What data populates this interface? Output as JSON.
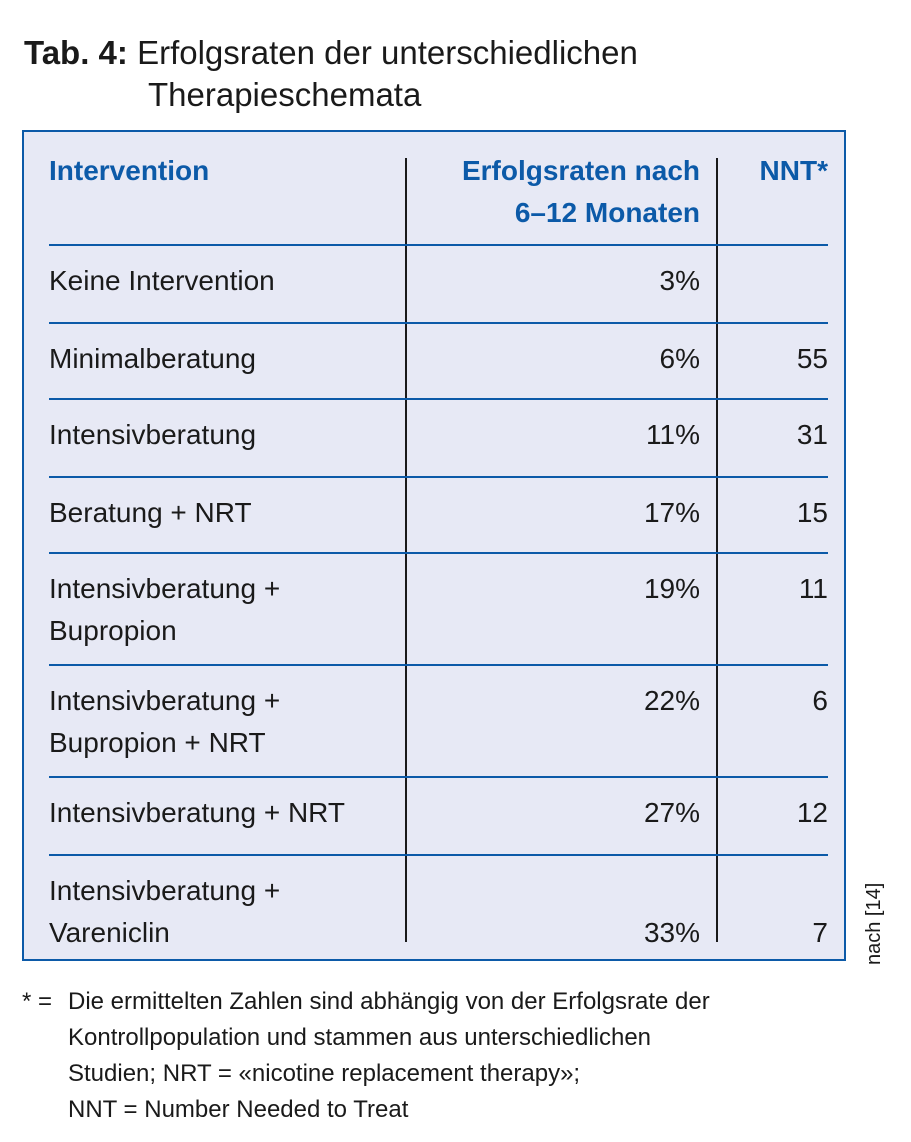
{
  "title": {
    "tab_label": "Tab. 4:",
    "line1": "Erfolgsraten der unterschiedlichen",
    "line2": "Therapieschemata"
  },
  "table": {
    "headers": {
      "intervention": "Intervention",
      "rate_line1": "Erfolgsraten nach",
      "rate_line2": "6–12 Monaten",
      "nnt": "NNT*"
    },
    "rows": [
      {
        "intervention": [
          "Keine Intervention"
        ],
        "rate": "3%",
        "nnt": ""
      },
      {
        "intervention": [
          "Minimalberatung"
        ],
        "rate": "6%",
        "nnt": "55"
      },
      {
        "intervention": [
          "Intensivberatung"
        ],
        "rate": "11%",
        "nnt": "31"
      },
      {
        "intervention": [
          "Beratung + NRT"
        ],
        "rate": "17%",
        "nnt": "15"
      },
      {
        "intervention": [
          "Intensivberatung +",
          "Bupropion"
        ],
        "rate": "19%",
        "nnt": "11"
      },
      {
        "intervention": [
          "Intensivberatung +",
          "Bupropion + NRT"
        ],
        "rate": "22%",
        "nnt": "6"
      },
      {
        "intervention": [
          "Intensivberatung + NRT"
        ],
        "rate": "27%",
        "nnt": "12"
      },
      {
        "intervention": [
          "Intensivberatung +",
          "Vareniclin"
        ],
        "rate": "33%",
        "nnt": "7"
      }
    ]
  },
  "source": "nach [14]",
  "footnote": {
    "mark": "* =",
    "lines": [
      "Die ermittelten Zahlen sind abhängig von der Erfolgsrate der",
      "Kontrollpopulation und stammen aus unterschiedlichen",
      "Studien; NRT = «nicotine replacement therapy»;",
      "NNT = Number Needed to Treat"
    ]
  }
}
